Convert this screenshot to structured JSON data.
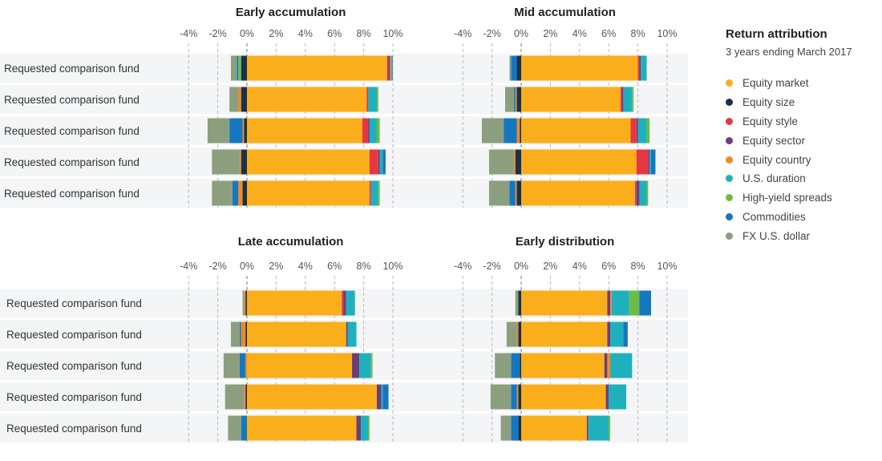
{
  "legend": {
    "title": "Return attribution",
    "subtitle": "3 years ending March 2017",
    "items": [
      {
        "label": "Equity market",
        "color": "#fbae1b"
      },
      {
        "label": "Equity size",
        "color": "#17324f"
      },
      {
        "label": "Equity style",
        "color": "#e63743"
      },
      {
        "label": "Equity sector",
        "color": "#6d3d7a"
      },
      {
        "label": "Equity country",
        "color": "#ef8a24"
      },
      {
        "label": "U.S. duration",
        "color": "#1fb0bd"
      },
      {
        "label": "High-yield spreads",
        "color": "#6cbd45"
      },
      {
        "label": "Commodities",
        "color": "#1577c0"
      },
      {
        "label": "FX U.S. dollar",
        "color": "#8b9f7f"
      }
    ]
  },
  "chart_data": [
    {
      "type": "bar",
      "stacked": true,
      "orientation": "horizontal",
      "title": "Early accumulation",
      "x_ticks": [
        "-4%",
        "-2%",
        "0%",
        "2%",
        "4%",
        "6%",
        "8%",
        "10%"
      ],
      "xlim": [
        -4,
        10
      ],
      "categories": [
        "Requested comparison fund",
        "Requested comparison fund",
        "Requested comparison fund",
        "Requested comparison fund",
        "Requested comparison fund"
      ],
      "series": [
        {
          "name": "Equity market",
          "values": [
            9.6,
            8.2,
            7.9,
            8.4,
            8.4
          ]
        },
        {
          "name": "Equity size",
          "values": [
            -0.4,
            -0.4,
            -0.2,
            -0.4,
            -0.3
          ]
        },
        {
          "name": "Equity style",
          "values": [
            0.1,
            0.1,
            0.4,
            0.6,
            0.1
          ]
        },
        {
          "name": "Equity sector",
          "values": [
            0.1,
            0.0,
            0.1,
            0.1,
            0.0
          ]
        },
        {
          "name": "Equity country",
          "values": [
            0.1,
            -0.2,
            -0.1,
            -0.1,
            -0.3
          ]
        },
        {
          "name": "U.S. duration",
          "values": [
            0.1,
            0.6,
            0.5,
            0.2,
            0.5
          ]
        },
        {
          "name": "High-yield spreads",
          "values": [
            -0.2,
            0.1,
            0.2,
            0.0,
            0.1
          ]
        },
        {
          "name": "Commodities",
          "values": [
            -0.1,
            0.0,
            -0.9,
            0.2,
            -0.4
          ]
        },
        {
          "name": "FX U.S. dollar",
          "values": [
            -0.4,
            -0.6,
            -1.5,
            -1.9,
            -1.4
          ]
        }
      ]
    },
    {
      "type": "bar",
      "stacked": true,
      "orientation": "horizontal",
      "title": "Mid accumulation",
      "x_ticks": [
        "-4%",
        "-2%",
        "0%",
        "2%",
        "4%",
        "6%",
        "8%",
        "10%"
      ],
      "xlim": [
        -4,
        10
      ],
      "categories": [
        "Requested comparison fund",
        "Requested comparison fund",
        "Requested comparison fund",
        "Requested comparison fund",
        "Requested comparison fund"
      ],
      "series": [
        {
          "name": "Equity market",
          "values": [
            8.0,
            6.8,
            7.5,
            7.9,
            7.8
          ]
        },
        {
          "name": "Equity size",
          "values": [
            -0.3,
            -0.3,
            -0.1,
            -0.4,
            -0.3
          ]
        },
        {
          "name": "Equity style",
          "values": [
            0.1,
            0.1,
            0.4,
            0.8,
            0.1
          ]
        },
        {
          "name": "Equity sector",
          "values": [
            0.1,
            0.1,
            0.1,
            0.1,
            0.2
          ]
        },
        {
          "name": "Equity country",
          "values": [
            0.0,
            -0.1,
            -0.2,
            -0.1,
            -0.1
          ]
        },
        {
          "name": "U.S. duration",
          "values": [
            0.4,
            0.6,
            0.6,
            0.1,
            0.5
          ]
        },
        {
          "name": "High-yield spreads",
          "values": [
            0.0,
            0.1,
            0.2,
            0.0,
            0.1
          ]
        },
        {
          "name": "Commodities",
          "values": [
            -0.4,
            -0.1,
            -0.9,
            0.3,
            -0.4
          ]
        },
        {
          "name": "FX U.S. dollar",
          "values": [
            -0.1,
            -0.6,
            -1.5,
            -1.7,
            -1.4
          ]
        }
      ]
    },
    {
      "type": "bar",
      "stacked": true,
      "orientation": "horizontal",
      "title": "Late accumulation",
      "x_ticks": [
        "-4%",
        "-2%",
        "0%",
        "2%",
        "4%",
        "6%",
        "8%",
        "10%"
      ],
      "xlim": [
        -4,
        10
      ],
      "categories": [
        "Requested comparison fund",
        "Requested comparison fund",
        "Requested comparison fund",
        "Requested comparison fund",
        "Requested comparison fund"
      ],
      "series": [
        {
          "name": "Equity market",
          "values": [
            6.5,
            6.8,
            7.2,
            8.9,
            7.5
          ]
        },
        {
          "name": "Equity size",
          "values": [
            -0.1,
            -0.1,
            0.0,
            -0.1,
            0.0
          ]
        },
        {
          "name": "Equity style",
          "values": [
            0.1,
            0.0,
            0.0,
            0.0,
            0.0
          ]
        },
        {
          "name": "Equity sector",
          "values": [
            0.2,
            0.1,
            0.5,
            0.3,
            0.3
          ]
        },
        {
          "name": "Equity country",
          "values": [
            -0.1,
            -0.3,
            -0.1,
            -0.1,
            0.0
          ]
        },
        {
          "name": "U.S. duration",
          "values": [
            0.6,
            0.6,
            0.8,
            0.1,
            0.5
          ]
        },
        {
          "name": "High-yield spreads",
          "values": [
            0.0,
            0.0,
            0.1,
            0.0,
            0.1
          ]
        },
        {
          "name": "Commodities",
          "values": [
            0.0,
            -0.1,
            -0.4,
            0.4,
            -0.4
          ]
        },
        {
          "name": "FX U.S. dollar",
          "values": [
            -0.1,
            -0.6,
            -1.1,
            -1.3,
            -0.9
          ]
        }
      ]
    },
    {
      "type": "bar",
      "stacked": true,
      "orientation": "horizontal",
      "title": "Early distribution",
      "x_ticks": [
        "-4%",
        "-2%",
        "0%",
        "2%",
        "4%",
        "6%",
        "8%",
        "10%"
      ],
      "xlim": [
        -4,
        10
      ],
      "categories": [
        "Requested comparison fund",
        "Requested comparison fund",
        "Requested comparison fund",
        "Requested comparison fund",
        "Requested comparison fund"
      ],
      "series": [
        {
          "name": "Equity market",
          "values": [
            5.9,
            5.9,
            5.7,
            5.8,
            4.5
          ]
        },
        {
          "name": "Equity size",
          "values": [
            -0.2,
            -0.2,
            -0.1,
            -0.2,
            -0.2
          ]
        },
        {
          "name": "Equity style",
          "values": [
            0.0,
            0.0,
            0.0,
            0.0,
            0.0
          ]
        },
        {
          "name": "Equity sector",
          "values": [
            0.2,
            0.2,
            0.2,
            0.2,
            0.1
          ]
        },
        {
          "name": "Equity country",
          "values": [
            0.1,
            -0.1,
            0.2,
            -0.1,
            0.0
          ]
        },
        {
          "name": "U.S. duration",
          "values": [
            1.2,
            0.9,
            1.5,
            1.2,
            1.4
          ]
        },
        {
          "name": "High-yield spreads",
          "values": [
            0.7,
            0.0,
            0.0,
            0.0,
            0.1
          ]
        },
        {
          "name": "Commodities",
          "values": [
            0.8,
            0.3,
            -0.6,
            -0.4,
            -0.5
          ]
        },
        {
          "name": "FX U.S. dollar",
          "values": [
            -0.2,
            -0.7,
            -1.1,
            -1.4,
            -0.7
          ]
        }
      ]
    }
  ]
}
